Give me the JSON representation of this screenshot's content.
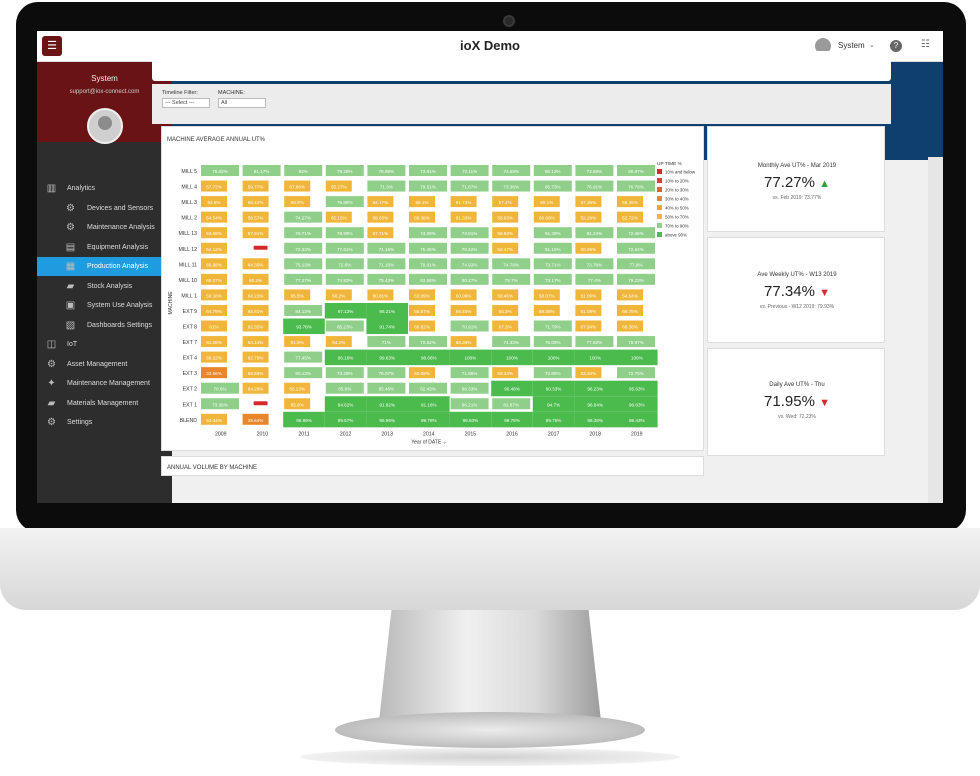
{
  "app": {
    "title": "ioX Demo",
    "user": "System"
  },
  "sidebar": {
    "title": "System",
    "email": "support@iox-connect.com",
    "items": [
      {
        "label": "Analytics",
        "level": 0,
        "icon": "chart-icon",
        "active": false
      },
      {
        "label": "Devices and Sensors",
        "level": 1,
        "icon": "gear-icon",
        "active": false
      },
      {
        "label": "Maintenance Analysis",
        "level": 1,
        "icon": "gears-icon",
        "active": false
      },
      {
        "label": "Equipment Analysis",
        "level": 1,
        "icon": "machine-icon",
        "active": false
      },
      {
        "label": "Production Analysis",
        "level": 1,
        "icon": "clipboard-icon",
        "active": true
      },
      {
        "label": "Stock Analysis",
        "level": 1,
        "icon": "forklift-icon",
        "active": false
      },
      {
        "label": "System Use Analysis",
        "level": 1,
        "icon": "monitor-icon",
        "active": false
      },
      {
        "label": "Dashboards Settings",
        "level": 1,
        "icon": "dashboard-icon",
        "active": false
      },
      {
        "label": "IoT",
        "level": 0,
        "icon": "iot-icon",
        "active": false
      },
      {
        "label": "Asset Management",
        "level": 0,
        "icon": "cogs-icon",
        "active": false
      },
      {
        "label": "Maintenance Management",
        "level": 0,
        "icon": "wrench-icon",
        "active": false
      },
      {
        "label": "Materials Management",
        "level": 0,
        "icon": "forklift-icon",
        "active": false
      },
      {
        "label": "Settings",
        "level": 0,
        "icon": "gear-icon",
        "active": false
      }
    ]
  },
  "page": {
    "title": "Production Analysis"
  },
  "filters": {
    "timeline_label": "Timeline Filter:",
    "timeline_value": "--- Select ---",
    "machine_label": "MACHINE:",
    "machine_value": "All"
  },
  "heatmap": {
    "title": "MACHINE AVERAGE ANNUAL UT%",
    "y_axis": "MACHINE",
    "x_axis": "Year of DATE",
    "legend_title": "UP TIME %",
    "legend": [
      {
        "label": "10% and below",
        "color": "#d8282c"
      },
      {
        "label": "10% to 20%",
        "color": "#e03d2a"
      },
      {
        "label": "20% to 30%",
        "color": "#e2612a"
      },
      {
        "label": "30% to 40%",
        "color": "#e9852a"
      },
      {
        "label": "40% to 50%",
        "color": "#eda72a"
      },
      {
        "label": "50% to 70%",
        "color": "#f0b63a"
      },
      {
        "label": "70% to 90%",
        "color": "#8fcf8a"
      },
      {
        "label": "above 90%",
        "color": "#4cbb4e"
      }
    ]
  },
  "chart_data": {
    "type": "heatmap",
    "title": "MACHINE AVERAGE ANNUAL UT%",
    "xlabel": "Year of DATE",
    "ylabel": "MACHINE",
    "x": [
      "2009",
      "2010",
      "2011",
      "2012",
      "2013",
      "2014",
      "2015",
      "2016",
      "2017",
      "2018",
      "2019"
    ],
    "y": [
      "MILL 5",
      "MILL 4",
      "MILL 3",
      "MILL 2",
      "MILL 13",
      "MILL 12",
      "MILL 11",
      "MILL 10",
      "MILL 1",
      "EXT 9",
      "EXT 8",
      "EXT 7",
      "EXT 4",
      "EXT 3",
      "EXT 2",
      "EXT 1",
      "BLEND"
    ],
    "values": [
      [
        76.02,
        81.17,
        83.0,
        79.28,
        78.98,
        73.61,
        73.11,
        74.59,
        80.13,
        73.68,
        86.97
      ],
      [
        57.72,
        59.77,
        67.96,
        65.27,
        71.3,
        79.51,
        71.87,
        73.36,
        85.73,
        76.91,
        76.78
      ],
      [
        63.8,
        66.42,
        68.9,
        75.86,
        64.17,
        65.1,
        61.73,
        57.4,
        69.1,
        57.36,
        58.35
      ],
      [
        54.54,
        58.57,
        74.27,
        65.15,
        69.83,
        68.38,
        61.33,
        58.93,
        66.66,
        52.29,
        52.72
      ],
      [
        53.58,
        57.91,
        76.71,
        78.99,
        67.71,
        74.39,
        73.91,
        58.83,
        81.38,
        81.24,
        72.46
      ],
      [
        64.12,
        null,
        72.33,
        77.61,
        71.16,
        75.45,
        70.42,
        62.47,
        81.15,
        60.09,
        72.64
      ],
      [
        66.68,
        64.35,
        75.13,
        72.6,
        71.16,
        79.01,
        74.93,
        74.78,
        73.71,
        73.78,
        77.8
      ],
      [
        65.07,
        60.2,
        77.27,
        74.83,
        75.43,
        83.58,
        80.27,
        78.7,
        73.17,
        77.4,
        79.23
      ],
      [
        59.18,
        64.22,
        65.5,
        56.2,
        60.01,
        63.09,
        60.06,
        58.46,
        58.07,
        51.09,
        54.54
      ],
      [
        64.79,
        65.61,
        84.12,
        97.13,
        95.21,
        55.57,
        58.45,
        55.3,
        69.08,
        61.09,
        66.75
      ],
      [
        61.0,
        62.35,
        93.78,
        85.23,
        91.74,
        68.62,
        70.91,
        67.3,
        71.79,
        67.94,
        66.38
      ],
      [
        61.08,
        54.14,
        61.9,
        64.2,
        71.0,
        70.62,
        68.36,
        74.33,
        75.06,
        77.82,
        78.97
      ],
      [
        69.22,
        62.76,
        77.45,
        96.16,
        99.63,
        98.66,
        100.0,
        100.0,
        100.0,
        100.0,
        100.0
      ],
      [
        33.56,
        56.58,
        80.13,
        73.28,
        76.07,
        60.08,
        71.86,
        69.34,
        72.85,
        53.34,
        72.75
      ],
      [
        70.6,
        64.29,
        65.13,
        85.6,
        85.48,
        82.43,
        86.33,
        90.48,
        90.33,
        96.23,
        95.63
      ],
      [
        73.36,
        null,
        65.6,
        94.62,
        91.82,
        91.16,
        86.21,
        82.87,
        94.7,
        96.84,
        96.63
      ],
      [
        53.34,
        35.64,
        95.99,
        99.57,
        95.96,
        99.78,
        99.63,
        99.78,
        99.75,
        98.38,
        98.43
      ]
    ],
    "grid": false,
    "legend_position": "right"
  },
  "kpis": [
    {
      "label": "Monthly Ave UT% - Mar 2019",
      "value": "77.27%",
      "trend": "up",
      "comparison": "vs. Feb 2019: 73.77%"
    },
    {
      "label": "Ave Weekly UT% - W13 2019",
      "value": "77.34%",
      "trend": "down",
      "comparison": "vs. Previous - W12 2019: 79.93%"
    },
    {
      "label": "Daily Ave UT% - Thu",
      "value": "71.95%",
      "trend": "down",
      "comparison": "vs. Wed: 72.23%"
    }
  ],
  "volume": {
    "title": "ANNUAL VOLUME BY MACHINE"
  },
  "glyphs": {
    "menu": "☰",
    "caret": "⌄",
    "help": "?",
    "list": "☷",
    "up": "▲",
    "down": "▼"
  }
}
